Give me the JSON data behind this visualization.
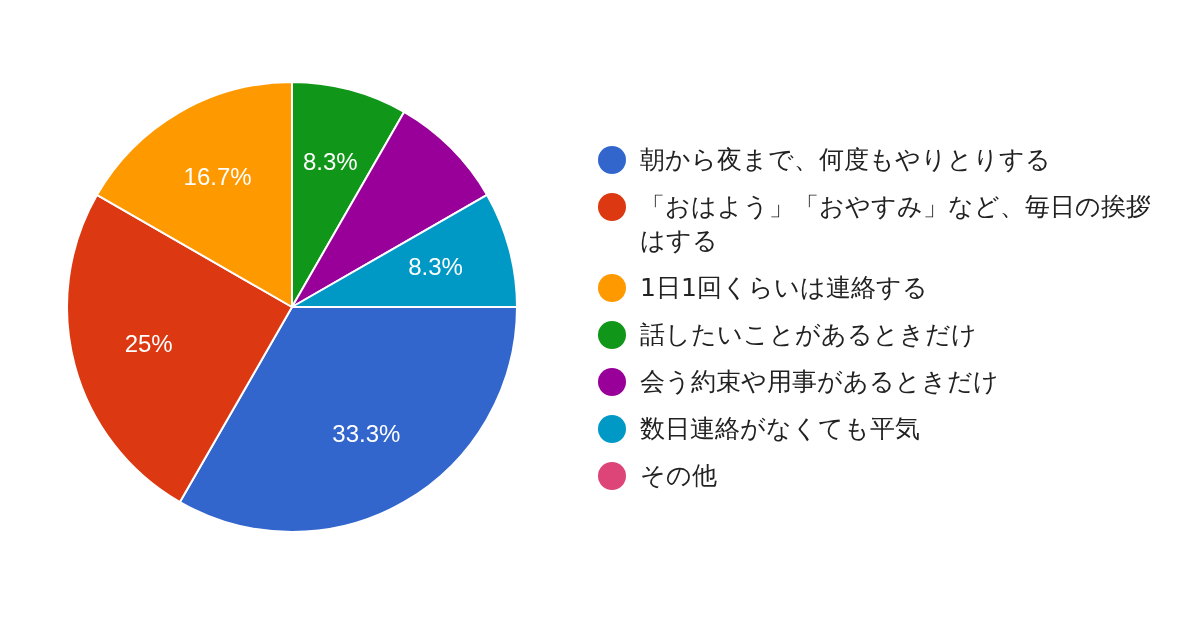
{
  "chart_data": {
    "type": "pie",
    "categories": [
      "朝から夜まで、何度もやりとりする",
      "「おはよう」「おやすみ」など、毎日の挨拶はする",
      "1日1回くらいは連絡する",
      "話したいことがあるときだけ",
      "会う約束や用事があるときだけ",
      "数日連絡がなくても平気",
      "その他"
    ],
    "values": [
      33.3,
      25,
      16.7,
      8.3,
      8.4,
      8.3,
      0
    ],
    "colors": [
      "#3366cc",
      "#dc3912",
      "#ff9900",
      "#109618",
      "#990099",
      "#0099c6",
      "#dd4477"
    ],
    "value_labels": [
      "33.3%",
      "25%",
      "16.7%",
      "8.3%",
      null,
      "8.3%",
      null
    ],
    "legend": "right"
  }
}
